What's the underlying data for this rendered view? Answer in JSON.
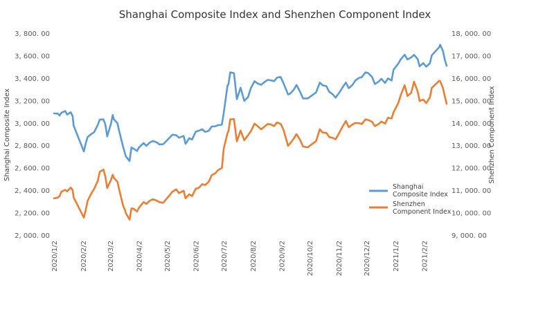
{
  "chart_data": {
    "type": "line",
    "title": "Shanghai Composite Index and Shenzhen Component Index",
    "ylabel_left": "Shanghai Composite Index",
    "ylabel_right": "Shenzhen Component Index",
    "ylim_left": [
      2000,
      3800
    ],
    "ylim_right": [
      9000,
      18000
    ],
    "yticks_left": [
      "2, 000. 00",
      "2, 200. 00",
      "2, 400. 00",
      "2, 600. 00",
      "2, 800. 00",
      "3, 000. 00",
      "3, 200. 00",
      "3, 400. 00",
      "3, 600. 00",
      "3, 800. 00"
    ],
    "yticks_right": [
      "9, 000. 00",
      "10, 000. 00",
      "11, 000. 00",
      "12, 000. 00",
      "13, 000. 00",
      "14, 000. 00",
      "15, 000. 00",
      "16, 000. 00",
      "17, 000. 00",
      "18, 000. 00"
    ],
    "xticks": [
      "2020/1/2",
      "2020/2/2",
      "2020/3/2",
      "2020/4/2",
      "2020/5/2",
      "2020/6/2",
      "2020/7/2",
      "2020/8/2",
      "2020/9/2",
      "2020/10/2",
      "2020/11/2",
      "2020/12/2",
      "2021/1/2",
      "2021/2/2"
    ],
    "x_range": [
      "2020-01-02",
      "2021-02-26"
    ],
    "grid": false,
    "legend_position": "right",
    "series": [
      {
        "name": "Shanghai Composite Index",
        "axis": "left",
        "color": "#5b9bd5",
        "points": [
          [
            "2020-01-02",
            3085
          ],
          [
            "2020-01-06",
            3083
          ],
          [
            "2020-01-08",
            3066
          ],
          [
            "2020-01-10",
            3092
          ],
          [
            "2020-01-14",
            3106
          ],
          [
            "2020-01-16",
            3075
          ],
          [
            "2020-01-20",
            3095
          ],
          [
            "2020-01-22",
            3060
          ],
          [
            "2020-01-23",
            2976
          ],
          [
            "2020-02-03",
            2746
          ],
          [
            "2020-02-05",
            2818
          ],
          [
            "2020-02-07",
            2875
          ],
          [
            "2020-02-11",
            2901
          ],
          [
            "2020-02-14",
            2917
          ],
          [
            "2020-02-18",
            2984
          ],
          [
            "2020-02-20",
            3030
          ],
          [
            "2020-02-24",
            3031
          ],
          [
            "2020-02-26",
            2987
          ],
          [
            "2020-02-28",
            2880
          ],
          [
            "2020-03-03",
            2992
          ],
          [
            "2020-03-05",
            3071
          ],
          [
            "2020-03-06",
            3034
          ],
          [
            "2020-03-10",
            2997
          ],
          [
            "2020-03-12",
            2923
          ],
          [
            "2020-03-16",
            2789
          ],
          [
            "2020-03-18",
            2729
          ],
          [
            "2020-03-19",
            2702
          ],
          [
            "2020-03-23",
            2660
          ],
          [
            "2020-03-25",
            2781
          ],
          [
            "2020-03-27",
            2772
          ],
          [
            "2020-03-31",
            2750
          ],
          [
            "2020-04-02",
            2781
          ],
          [
            "2020-04-07",
            2820
          ],
          [
            "2020-04-10",
            2796
          ],
          [
            "2020-04-14",
            2827
          ],
          [
            "2020-04-17",
            2839
          ],
          [
            "2020-04-21",
            2827
          ],
          [
            "2020-04-24",
            2809
          ],
          [
            "2020-04-28",
            2810
          ],
          [
            "2020-05-06",
            2878
          ],
          [
            "2020-05-08",
            2895
          ],
          [
            "2020-05-12",
            2891
          ],
          [
            "2020-05-15",
            2868
          ],
          [
            "2020-05-20",
            2884
          ],
          [
            "2020-05-22",
            2814
          ],
          [
            "2020-05-26",
            2864
          ],
          [
            "2020-05-29",
            2852
          ],
          [
            "2020-06-02",
            2922
          ],
          [
            "2020-06-05",
            2930
          ],
          [
            "2020-06-09",
            2943
          ],
          [
            "2020-06-12",
            2920
          ],
          [
            "2020-06-16",
            2931
          ],
          [
            "2020-06-19",
            2968
          ],
          [
            "2020-06-23",
            2970
          ],
          [
            "2020-06-26",
            2980
          ],
          [
            "2020-06-30",
            2985
          ],
          [
            "2020-07-02",
            3090
          ],
          [
            "2020-07-06",
            3333
          ],
          [
            "2020-07-07",
            3345
          ],
          [
            "2020-07-09",
            3451
          ],
          [
            "2020-07-13",
            3444
          ],
          [
            "2020-07-16",
            3211
          ],
          [
            "2020-07-20",
            3314
          ],
          [
            "2020-07-24",
            3197
          ],
          [
            "2020-07-28",
            3229
          ],
          [
            "2020-07-31",
            3310
          ],
          [
            "2020-08-04",
            3372
          ],
          [
            "2020-08-07",
            3354
          ],
          [
            "2020-08-11",
            3340
          ],
          [
            "2020-08-14",
            3360
          ],
          [
            "2020-08-18",
            3384
          ],
          [
            "2020-08-21",
            3380
          ],
          [
            "2020-08-25",
            3373
          ],
          [
            "2020-08-28",
            3403
          ],
          [
            "2020-09-01",
            3410
          ],
          [
            "2020-09-04",
            3355
          ],
          [
            "2020-09-09",
            3254
          ],
          [
            "2020-09-11",
            3260
          ],
          [
            "2020-09-15",
            3295
          ],
          [
            "2020-09-18",
            3338
          ],
          [
            "2020-09-22",
            3274
          ],
          [
            "2020-09-25",
            3219
          ],
          [
            "2020-09-30",
            3218
          ],
          [
            "2020-10-09",
            3272
          ],
          [
            "2020-10-13",
            3359
          ],
          [
            "2020-10-16",
            3336
          ],
          [
            "2020-10-20",
            3328
          ],
          [
            "2020-10-23",
            3278
          ],
          [
            "2020-10-27",
            3254
          ],
          [
            "2020-10-30",
            3225
          ],
          [
            "2020-11-03",
            3272
          ],
          [
            "2020-11-06",
            3312
          ],
          [
            "2020-11-10",
            3360
          ],
          [
            "2020-11-13",
            3310
          ],
          [
            "2020-11-17",
            3339
          ],
          [
            "2020-11-20",
            3377
          ],
          [
            "2020-11-24",
            3402
          ],
          [
            "2020-11-27",
            3408
          ],
          [
            "2020-12-01",
            3451
          ],
          [
            "2020-12-04",
            3444
          ],
          [
            "2020-12-08",
            3410
          ],
          [
            "2020-12-11",
            3347
          ],
          [
            "2020-12-15",
            3367
          ],
          [
            "2020-12-18",
            3394
          ],
          [
            "2020-12-22",
            3356
          ],
          [
            "2020-12-25",
            3397
          ],
          [
            "2020-12-29",
            3379
          ],
          [
            "2020-12-31",
            3473
          ],
          [
            "2021-01-05",
            3528
          ],
          [
            "2021-01-08",
            3570
          ],
          [
            "2021-01-12",
            3608
          ],
          [
            "2021-01-15",
            3566
          ],
          [
            "2021-01-19",
            3584
          ],
          [
            "2021-01-22",
            3607
          ],
          [
            "2021-01-26",
            3569
          ],
          [
            "2021-01-28",
            3505
          ],
          [
            "2021-02-01",
            3533
          ],
          [
            "2021-02-04",
            3501
          ],
          [
            "2021-02-08",
            3532
          ],
          [
            "2021-02-10",
            3603
          ],
          [
            "2021-02-18",
            3675
          ],
          [
            "2021-02-19",
            3697
          ],
          [
            "2021-02-22",
            3642
          ],
          [
            "2021-02-24",
            3564
          ],
          [
            "2021-02-26",
            3509
          ]
        ]
      },
      {
        "name": "Shenzhen Component Index",
        "axis": "right",
        "color": "#ed7d31",
        "points": [
          [
            "2020-01-02",
            10638
          ],
          [
            "2020-01-06",
            10670
          ],
          [
            "2020-01-08",
            10740
          ],
          [
            "2020-01-10",
            10940
          ],
          [
            "2020-01-14",
            11020
          ],
          [
            "2020-01-16",
            10950
          ],
          [
            "2020-01-20",
            11120
          ],
          [
            "2020-01-22",
            11000
          ],
          [
            "2020-01-23",
            10680
          ],
          [
            "2020-02-03",
            9780
          ],
          [
            "2020-02-05",
            10120
          ],
          [
            "2020-02-07",
            10530
          ],
          [
            "2020-02-11",
            10860
          ],
          [
            "2020-02-14",
            11060
          ],
          [
            "2020-02-18",
            11430
          ],
          [
            "2020-02-20",
            11820
          ],
          [
            "2020-02-24",
            11920
          ],
          [
            "2020-02-26",
            11600
          ],
          [
            "2020-02-28",
            11100
          ],
          [
            "2020-03-03",
            11460
          ],
          [
            "2020-03-05",
            11690
          ],
          [
            "2020-03-06",
            11560
          ],
          [
            "2020-03-10",
            11380
          ],
          [
            "2020-03-12",
            11000
          ],
          [
            "2020-03-16",
            10320
          ],
          [
            "2020-03-18",
            10120
          ],
          [
            "2020-03-19",
            9980
          ],
          [
            "2020-03-23",
            9690
          ],
          [
            "2020-03-25",
            10190
          ],
          [
            "2020-03-27",
            10180
          ],
          [
            "2020-03-31",
            10050
          ],
          [
            "2020-04-02",
            10220
          ],
          [
            "2020-04-07",
            10470
          ],
          [
            "2020-04-10",
            10390
          ],
          [
            "2020-04-14",
            10540
          ],
          [
            "2020-04-17",
            10600
          ],
          [
            "2020-04-21",
            10540
          ],
          [
            "2020-04-24",
            10470
          ],
          [
            "2020-04-28",
            10440
          ],
          [
            "2020-05-06",
            10830
          ],
          [
            "2020-05-08",
            10940
          ],
          [
            "2020-05-12",
            11040
          ],
          [
            "2020-05-15",
            10870
          ],
          [
            "2020-05-20",
            10980
          ],
          [
            "2020-05-22",
            10640
          ],
          [
            "2020-05-26",
            10820
          ],
          [
            "2020-05-29",
            10740
          ],
          [
            "2020-06-02",
            11070
          ],
          [
            "2020-06-05",
            11100
          ],
          [
            "2020-06-09",
            11270
          ],
          [
            "2020-06-12",
            11230
          ],
          [
            "2020-06-16",
            11380
          ],
          [
            "2020-06-19",
            11670
          ],
          [
            "2020-06-23",
            11760
          ],
          [
            "2020-06-26",
            11900
          ],
          [
            "2020-06-30",
            11990
          ],
          [
            "2020-07-02",
            12860
          ],
          [
            "2020-07-06",
            13550
          ],
          [
            "2020-07-07",
            13640
          ],
          [
            "2020-07-09",
            14160
          ],
          [
            "2020-07-13",
            14170
          ],
          [
            "2020-07-16",
            13180
          ],
          [
            "2020-07-20",
            13660
          ],
          [
            "2020-07-24",
            13230
          ],
          [
            "2020-07-28",
            13450
          ],
          [
            "2020-07-31",
            13630
          ],
          [
            "2020-08-04",
            13970
          ],
          [
            "2020-08-07",
            13870
          ],
          [
            "2020-08-11",
            13720
          ],
          [
            "2020-08-14",
            13810
          ],
          [
            "2020-08-18",
            13950
          ],
          [
            "2020-08-21",
            13940
          ],
          [
            "2020-08-25",
            13860
          ],
          [
            "2020-08-28",
            14020
          ],
          [
            "2020-09-01",
            13960
          ],
          [
            "2020-09-04",
            13700
          ],
          [
            "2020-09-09",
            12980
          ],
          [
            "2020-09-11",
            13080
          ],
          [
            "2020-09-15",
            13300
          ],
          [
            "2020-09-18",
            13500
          ],
          [
            "2020-09-22",
            13230
          ],
          [
            "2020-09-25",
            12950
          ],
          [
            "2020-09-30",
            12910
          ],
          [
            "2020-10-09",
            13190
          ],
          [
            "2020-10-13",
            13720
          ],
          [
            "2020-10-16",
            13570
          ],
          [
            "2020-10-20",
            13560
          ],
          [
            "2020-10-23",
            13370
          ],
          [
            "2020-10-27",
            13330
          ],
          [
            "2020-10-30",
            13270
          ],
          [
            "2020-11-03",
            13570
          ],
          [
            "2020-11-06",
            13810
          ],
          [
            "2020-11-10",
            14090
          ],
          [
            "2020-11-13",
            13810
          ],
          [
            "2020-11-17",
            13930
          ],
          [
            "2020-11-20",
            14000
          ],
          [
            "2020-11-24",
            13990
          ],
          [
            "2020-11-27",
            13950
          ],
          [
            "2020-12-01",
            14160
          ],
          [
            "2020-12-04",
            14130
          ],
          [
            "2020-12-08",
            14050
          ],
          [
            "2020-12-11",
            13860
          ],
          [
            "2020-12-15",
            13950
          ],
          [
            "2020-12-18",
            14060
          ],
          [
            "2020-12-22",
            13970
          ],
          [
            "2020-12-25",
            14230
          ],
          [
            "2020-12-29",
            14200
          ],
          [
            "2020-12-31",
            14470
          ],
          [
            "2021-01-05",
            14880
          ],
          [
            "2021-01-08",
            15270
          ],
          [
            "2021-01-12",
            15680
          ],
          [
            "2021-01-15",
            15200
          ],
          [
            "2021-01-19",
            15340
          ],
          [
            "2021-01-22",
            15840
          ],
          [
            "2021-01-26",
            15400
          ],
          [
            "2021-01-28",
            14980
          ],
          [
            "2021-02-01",
            15040
          ],
          [
            "2021-02-04",
            14880
          ],
          [
            "2021-02-08",
            15140
          ],
          [
            "2021-02-10",
            15560
          ],
          [
            "2021-02-18",
            15880
          ],
          [
            "2021-02-19",
            15860
          ],
          [
            "2021-02-22",
            15560
          ],
          [
            "2021-02-24",
            15180
          ],
          [
            "2021-02-26",
            14850
          ]
        ]
      }
    ]
  }
}
